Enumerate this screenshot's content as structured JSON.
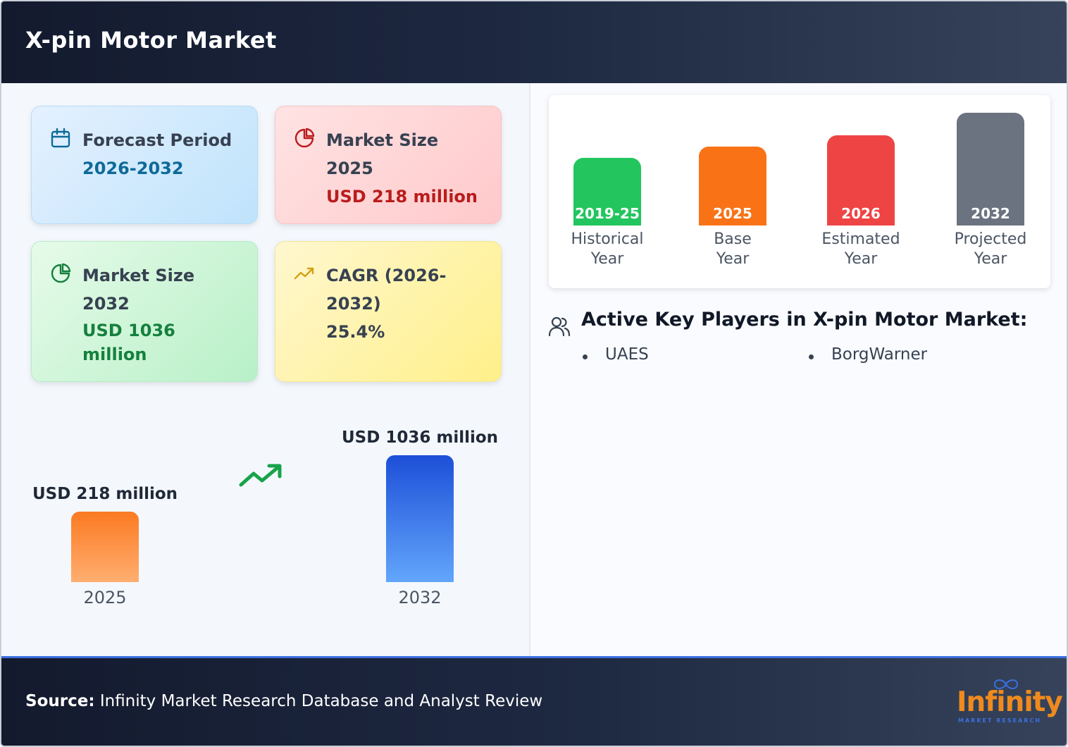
{
  "header": {
    "title": "X-pin Motor Market"
  },
  "cards": {
    "forecast": {
      "label": "Forecast Period",
      "value": "2026-2032"
    },
    "market_size_2025": {
      "label_line1": "Market Size",
      "label_line2": "2025",
      "value": "USD 218 million"
    },
    "market_size_2032": {
      "label_line1": "Market Size",
      "label_line2": "2032",
      "value_line1": "USD 1036",
      "value_line2": "million"
    },
    "cagr": {
      "label_line1": "CAGR (2026-",
      "label_line2": "2032)",
      "value": "25.4%"
    }
  },
  "chart_data": {
    "type": "bar",
    "categories": [
      "2025",
      "2032"
    ],
    "values": [
      218,
      1036
    ],
    "value_labels": [
      "USD 218 million",
      "USD 1036 million"
    ],
    "unit": "USD million",
    "colors": [
      "#fb7a22",
      "#1d4fd8"
    ]
  },
  "timeline": [
    {
      "year": "2019-25",
      "caption_line1": "Historical",
      "caption_line2": "Year",
      "color": "#22c55e"
    },
    {
      "year": "2025",
      "caption_line1": "Base",
      "caption_line2": "Year",
      "color": "#f97316"
    },
    {
      "year": "2026",
      "caption_line1": "Estimated",
      "caption_line2": "Year",
      "color": "#ef4444"
    },
    {
      "year": "2032",
      "caption_line1": "Projected",
      "caption_line2": "Year",
      "color": "#6b7280"
    }
  ],
  "players": {
    "title": "Active Key Players in X-pin Motor Market:",
    "items": [
      "UAES",
      "BorgWarner"
    ]
  },
  "footer": {
    "source_label": "Source:",
    "source_text": "Infinity Market Research Database and Analyst Review",
    "logo_word": "Infinity",
    "logo_sub": "MARKET RESEARCH"
  }
}
